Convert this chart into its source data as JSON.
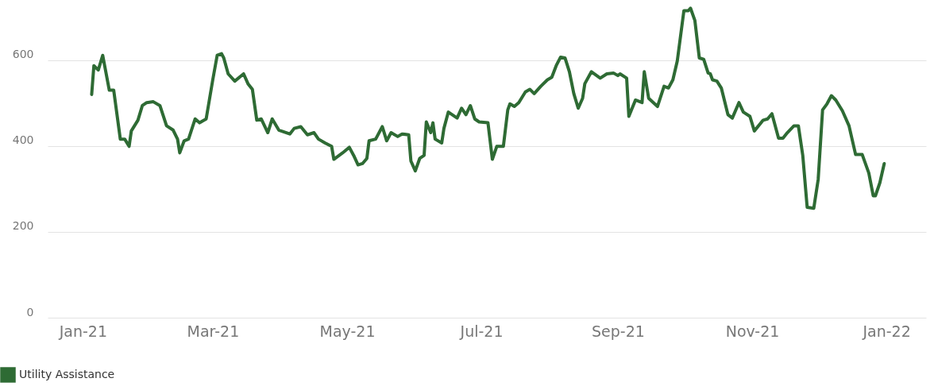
{
  "chart_data": {
    "type": "line",
    "x": [
      "2021-01-05",
      "2021-01-06",
      "2021-01-08",
      "2021-01-10",
      "2021-01-13",
      "2021-01-15",
      "2021-01-18",
      "2021-01-20",
      "2021-01-22",
      "2021-01-23",
      "2021-01-26",
      "2021-01-28",
      "2021-01-30",
      "2021-02-02",
      "2021-02-05",
      "2021-02-08",
      "2021-02-11",
      "2021-02-13",
      "2021-02-14",
      "2021-02-16",
      "2021-02-18",
      "2021-02-21",
      "2021-02-23",
      "2021-02-26",
      "2021-03-01",
      "2021-03-03",
      "2021-03-05",
      "2021-03-06",
      "2021-03-08",
      "2021-03-11",
      "2021-03-15",
      "2021-03-17",
      "2021-03-19",
      "2021-03-21",
      "2021-03-23",
      "2021-03-26",
      "2021-03-28",
      "2021-03-31",
      "2021-04-05",
      "2021-04-07",
      "2021-04-10",
      "2021-04-13",
      "2021-04-16",
      "2021-04-18",
      "2021-04-21",
      "2021-04-24",
      "2021-04-25",
      "2021-04-29",
      "2021-05-02",
      "2021-05-04",
      "2021-05-06",
      "2021-05-08",
      "2021-05-10",
      "2021-05-11",
      "2021-05-14",
      "2021-05-17",
      "2021-05-19",
      "2021-05-21",
      "2021-05-24",
      "2021-05-26",
      "2021-05-29",
      "2021-05-30",
      "2021-06-01",
      "2021-06-03",
      "2021-06-05",
      "2021-06-06",
      "2021-06-08",
      "2021-06-09",
      "2021-06-10",
      "2021-06-13",
      "2021-06-14",
      "2021-06-16",
      "2021-06-20",
      "2021-06-22",
      "2021-06-24",
      "2021-06-26",
      "2021-06-28",
      "2021-06-30",
      "2021-07-04",
      "2021-07-06",
      "2021-07-08",
      "2021-07-11",
      "2021-07-13",
      "2021-07-14",
      "2021-07-16",
      "2021-07-18",
      "2021-07-21",
      "2021-07-23",
      "2021-07-25",
      "2021-07-28",
      "2021-07-31",
      "2021-08-02",
      "2021-08-04",
      "2021-08-06",
      "2021-08-08",
      "2021-08-10",
      "2021-08-12",
      "2021-08-14",
      "2021-08-16",
      "2021-08-17",
      "2021-08-20",
      "2021-08-24",
      "2021-08-27",
      "2021-08-30",
      "2021-09-01",
      "2021-09-02",
      "2021-09-05",
      "2021-09-06",
      "2021-09-09",
      "2021-09-12",
      "2021-09-13",
      "2021-09-15",
      "2021-09-19",
      "2021-09-22",
      "2021-09-24",
      "2021-09-26",
      "2021-09-28",
      "2021-10-01",
      "2021-10-03",
      "2021-10-04",
      "2021-10-06",
      "2021-10-08",
      "2021-10-10",
      "2021-10-12",
      "2021-10-13",
      "2021-10-14",
      "2021-10-16",
      "2021-10-18",
      "2021-10-21",
      "2021-10-23",
      "2021-10-26",
      "2021-10-28",
      "2021-10-31",
      "2021-11-02",
      "2021-11-06",
      "2021-11-08",
      "2021-11-10",
      "2021-11-13",
      "2021-11-15",
      "2021-11-17",
      "2021-11-20",
      "2021-11-22",
      "2021-11-24",
      "2021-11-26",
      "2021-11-29",
      "2021-12-01",
      "2021-12-03",
      "2021-12-05",
      "2021-12-07",
      "2021-12-09",
      "2021-12-12",
      "2021-12-15",
      "2021-12-18",
      "2021-12-21",
      "2021-12-24",
      "2021-12-26",
      "2021-12-27",
      "2021-12-29",
      "2021-12-31"
    ],
    "series": [
      {
        "name": "Utility Assistance",
        "color": "#2e6b34",
        "values": [
          520,
          587,
          577,
          611,
          530,
          530,
          416,
          416,
          399,
          435,
          460,
          494,
          501,
          503,
          494,
          447,
          437,
          416,
          384,
          412,
          416,
          463,
          454,
          463,
          554,
          611,
          615,
          605,
          568,
          551,
          568,
          545,
          532,
          460,
          463,
          431,
          463,
          437,
          428,
          441,
          445,
          426,
          431,
          416,
          407,
          399,
          369,
          384,
          397,
          378,
          356,
          359,
          371,
          412,
          416,
          445,
          412,
          431,
          422,
          428,
          426,
          365,
          342,
          371,
          378,
          456,
          431,
          454,
          416,
          407,
          441,
          479,
          465,
          488,
          473,
          494,
          463,
          456,
          454,
          369,
          399,
          399,
          484,
          498,
          492,
          501,
          526,
          532,
          522,
          539,
          554,
          560,
          587,
          607,
          605,
          573,
          522,
          488,
          511,
          545,
          573,
          558,
          568,
          570,
          564,
          568,
          558,
          469,
          507,
          501,
          573,
          511,
          492,
          539,
          535,
          554,
          598,
          715,
          715,
          721,
          692,
          605,
          602,
          570,
          568,
          554,
          551,
          535,
          473,
          465,
          501,
          479,
          469,
          435,
          460,
          463,
          475,
          418,
          418,
          431,
          447,
          447,
          378,
          257,
          255,
          322,
          484,
          498,
          517,
          507,
          482,
          447,
          380,
          380,
          337,
          284,
          284,
          314,
          359
        ]
      }
    ],
    "xlim": [
      "2020-12-16",
      "2022-01-19"
    ],
    "xticks": [
      {
        "value": "2021-01-01",
        "label": "Jan-21"
      },
      {
        "value": "2021-03-01",
        "label": "Mar-21"
      },
      {
        "value": "2021-05-01",
        "label": "May-21"
      },
      {
        "value": "2021-07-01",
        "label": "Jul-21"
      },
      {
        "value": "2021-09-01",
        "label": "Sep-21"
      },
      {
        "value": "2021-11-01",
        "label": "Nov-21"
      },
      {
        "value": "2022-01-01",
        "label": "Jan-22"
      }
    ],
    "ylim": [
      0,
      740
    ],
    "yticks": [
      0,
      200,
      400,
      600
    ],
    "grid": "y",
    "legend": "bottom left"
  }
}
